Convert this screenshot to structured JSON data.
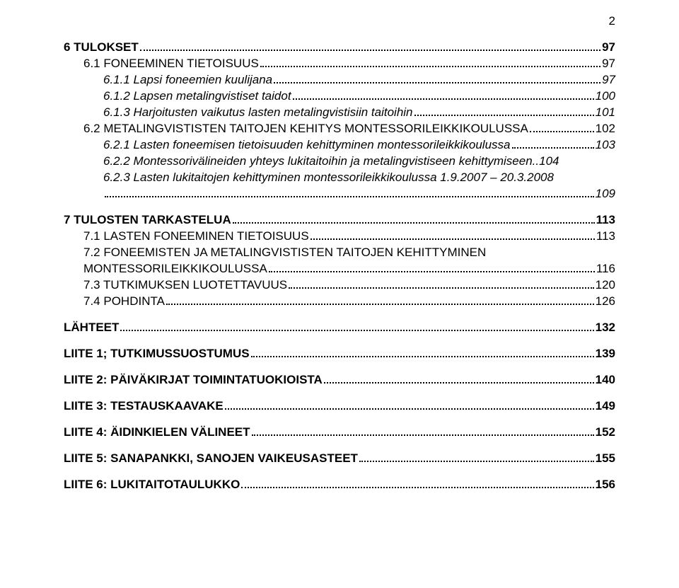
{
  "pageNumber": "2",
  "lines": [
    {
      "cls": "lvl1 bold",
      "text": "6 TULOKSET",
      "page": "97"
    },
    {
      "cls": "lvl2 smallcaps",
      "text": "6.1 FONEEMINEN TIETOISUUS",
      "page": "97"
    },
    {
      "cls": "lvl3 italic",
      "text": "6.1.1 Lapsi foneemien kuulijana",
      "page": "97"
    },
    {
      "cls": "lvl3 italic",
      "text": "6.1.2 Lapsen metalingvistiset taidot",
      "page": "100"
    },
    {
      "cls": "lvl3 italic",
      "text": "6.1.3 Harjoitusten vaikutus lasten metalingvistisiin taitoihin",
      "page": "101"
    },
    {
      "cls": "lvl2 smallcaps",
      "text": "6.2 METALINGVISTISTEN TAITOJEN KEHITYS MONTESSORILEIKKIKOULUSSA",
      "page": "102"
    },
    {
      "cls": "lvl3 italic",
      "text": "6.2.1 Lasten foneemisen tietoisuuden kehittyminen montessorileikkikoulussa",
      "page": "103"
    },
    {
      "cls": "lvl3 italic",
      "text": "6.2.2 Montessorivälineiden yhteys lukitaitoihin ja metalingvistiseen kehittymiseen",
      "page": "104",
      "nodots": true
    },
    {
      "cls": "lvl3 italic",
      "text": "6.2.3 Lasten lukitaitojen kehittyminen montessorileikkikoulussa 1.9.2007 – 20.3.2008",
      "page": "",
      "nopage": true
    },
    {
      "cls": "wrap-continue italic",
      "text": "",
      "page": "109",
      "dotsonly": true
    },
    {
      "cls": "lvl1 bold",
      "text": "7 TULOSTEN TARKASTELUA",
      "page": "113"
    },
    {
      "cls": "lvl2 smallcaps",
      "text": "7.1 LASTEN FONEEMINEN TIETOISUUS",
      "page": "113"
    },
    {
      "cls": "lvl2 smallcaps",
      "text": "7.2 FONEEMISTEN JA METALINGVISTISTEN TAITOJEN KEHITTYMINEN",
      "page": "",
      "nopage": true,
      "nodots": true
    },
    {
      "cls": "lvl2 smallcaps",
      "text": "MONTESSORILEIKKIKOULUSSA",
      "page": "116"
    },
    {
      "cls": "lvl2 smallcaps",
      "text": "7.3 TUTKIMUKSEN LUOTETTAVUUS",
      "page": "120"
    },
    {
      "cls": "lvl2 smallcaps",
      "text": "7.4 POHDINTA",
      "page": "126"
    },
    {
      "cls": "lvl1 bold",
      "text": "LÄHTEET",
      "page": "132"
    },
    {
      "cls": "lvl1 bold",
      "text": "LIITE 1; TUTKIMUSSUOSTUMUS",
      "page": "139"
    },
    {
      "cls": "lvl1 bold",
      "text": "LIITE 2: PÄIVÄKIRJAT TOIMINTATUOKIOISTA",
      "page": "140"
    },
    {
      "cls": "lvl1 bold",
      "text": "LIITE 3: TESTAUSKAAVAKE",
      "page": "149"
    },
    {
      "cls": "lvl1 bold",
      "text": "LIITE 4: ÄIDINKIELEN VÄLINEET",
      "page": "152"
    },
    {
      "cls": "lvl1 bold",
      "text": "LIITE 5: SANAPANKKI, SANOJEN VAIKEUSASTEET",
      "page": "155"
    },
    {
      "cls": "lvl1 bold",
      "text": "LIITE 6: LUKITAITOTAULUKKO",
      "page": "156"
    }
  ]
}
